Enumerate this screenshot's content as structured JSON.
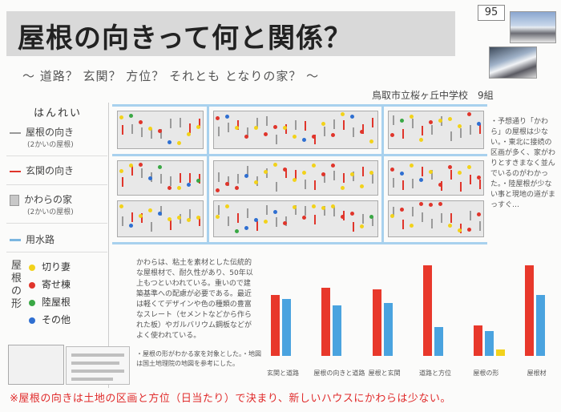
{
  "entry_number": "95",
  "title": "屋根の向きって何と関係？",
  "subtitle": "〜 道路？ 玄関？ 方位？ それとも となりの家？ 〜",
  "school": "鳥取市立桜ヶ丘中学校　9組",
  "legend": {
    "heading": "はんれい",
    "items": [
      {
        "label": "屋根の向き",
        "sub": "(2かいの屋根)"
      },
      {
        "label": "玄関の向き",
        "sub": ""
      },
      {
        "label": "かわらの家",
        "sub": "(2かいの屋根)"
      },
      {
        "label": "用水路",
        "sub": ""
      }
    ],
    "shape_heading": "屋根の形",
    "shapes": [
      {
        "label": "切り妻",
        "color": "#f2d21b"
      },
      {
        "label": "寄せ棟",
        "color": "#e0352b"
      },
      {
        "label": "陸屋根",
        "color": "#3aa845"
      },
      {
        "label": "その他",
        "color": "#2f6fd1"
      }
    ]
  },
  "map_notes": "・予想通り「かわら」の屋根は少ない。・東北に接続の区画が多く、家がわりとすきまなく並んでいるのがわかった。・陸屋根が少ない事と現地の道がまっすぐ…",
  "description": "かわらは、粘土を素材とした伝統的な屋根材で、耐久性があり、50年以上もつといわれている。重いので建築基準への配慮が必要である。最近は軽くてデザインや色の種類の豊富なスレート（セメントなどから作られた板）やガルバリウム鋼板などがよく使われている。",
  "notes": "・屋根の形がわかる家を対象とした。・地図は国土地理院の地図を参考にした。",
  "chart_data": {
    "type": "bar",
    "categories": [
      "玄関と道路",
      "屋根の向きと道路",
      "屋根と玄関",
      "道路と方位",
      "屋根の形",
      "屋根材"
    ],
    "series": [
      {
        "name": "",
        "values": [
          48,
          54,
          53,
          72,
          24,
          72
        ],
        "color": "#e8382b"
      },
      {
        "name": "",
        "values": [
          45,
          40,
          42,
          23,
          20,
          48
        ],
        "color": "#4aa3df"
      }
    ],
    "extra": {
      "category": "屋根の形",
      "value": 5,
      "color": "#f2d21b"
    },
    "ylim": [
      0,
      80
    ]
  },
  "footer": "※屋根の向きは土地の区画と方位（日当たり）で決まり、新しいハウスにかわらは少ない。"
}
